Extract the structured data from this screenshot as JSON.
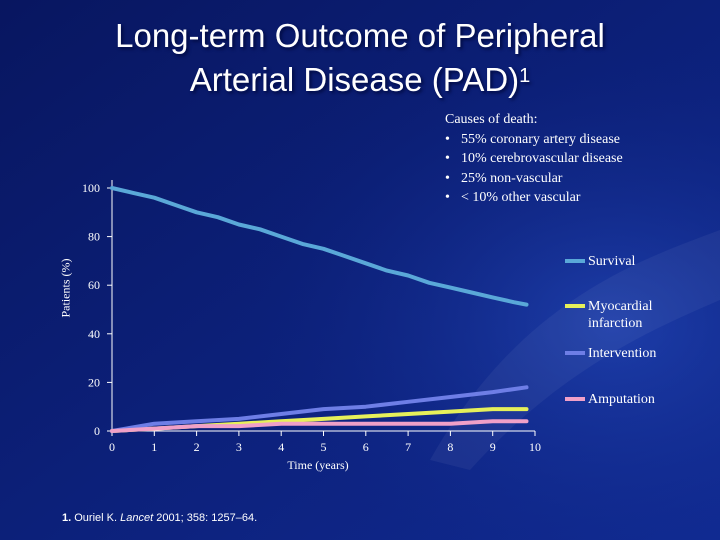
{
  "slide": {
    "title_line1": "Long-term Outcome of Peripheral",
    "title_line2": "Arterial Disease (PAD)",
    "title_superscript": "1"
  },
  "causes": {
    "heading": "Causes of death:",
    "items": [
      "55% coronary artery disease",
      "10% cerebrovascular disease",
      "25% non-vascular",
      "< 10% other vascular"
    ]
  },
  "reference": {
    "number": "1.",
    "author": "Ouriel K.",
    "journal": "Lancet",
    "details": "2001; 358: 1257–64."
  },
  "colors": {
    "background": "#0b1f7a",
    "survival": "#5aa8d8",
    "myocardial_infarction": "#e6f05a",
    "intervention": "#6e7ee6",
    "amputation": "#f0a0c8"
  },
  "chart_data": {
    "type": "line",
    "title": "",
    "xlabel": "Time (years)",
    "ylabel": "Patients (%)",
    "xlim": [
      0,
      10
    ],
    "ylim": [
      0,
      100
    ],
    "x_ticks": [
      0,
      1,
      2,
      3,
      4,
      5,
      6,
      7,
      8,
      9,
      10
    ],
    "y_ticks": [
      0,
      20,
      40,
      60,
      80,
      100
    ],
    "legend": [
      "Survival",
      "Myocardial infarction",
      "Intervention",
      "Amputation"
    ],
    "legend_labels": [
      "Survival",
      "Myocardial",
      "infarction",
      "Intervention",
      "Amputation"
    ],
    "series": [
      {
        "name": "Survival",
        "color": "#5aa8d8",
        "x": [
          0,
          0.5,
          1,
          1.5,
          2,
          2.5,
          3,
          3.5,
          4,
          4.5,
          5,
          5.5,
          6,
          6.5,
          7,
          7.5,
          8,
          8.5,
          9,
          9.5,
          9.8
        ],
        "y": [
          100,
          98,
          96,
          93,
          90,
          88,
          85,
          83,
          80,
          77,
          75,
          72,
          69,
          66,
          64,
          61,
          59,
          57,
          55,
          53,
          52
        ]
      },
      {
        "name": "Myocardial infarction",
        "color": "#e6f05a",
        "x": [
          0,
          1,
          2,
          3,
          4,
          5,
          6,
          7,
          8,
          9,
          9.8
        ],
        "y": [
          0,
          1,
          2,
          3,
          4,
          5,
          6,
          7,
          8,
          9,
          9
        ]
      },
      {
        "name": "Intervention",
        "color": "#6e7ee6",
        "x": [
          0,
          1,
          2,
          3,
          4,
          5,
          6,
          7,
          8,
          9,
          9.8
        ],
        "y": [
          0,
          3,
          4,
          5,
          7,
          9,
          10,
          12,
          14,
          16,
          18
        ]
      },
      {
        "name": "Amputation",
        "color": "#f0a0c8",
        "x": [
          0,
          1,
          2,
          3,
          4,
          5,
          6,
          7,
          8,
          9,
          9.8
        ],
        "y": [
          0,
          1,
          2,
          2,
          3,
          3,
          3,
          3,
          3,
          4,
          4
        ]
      }
    ]
  }
}
